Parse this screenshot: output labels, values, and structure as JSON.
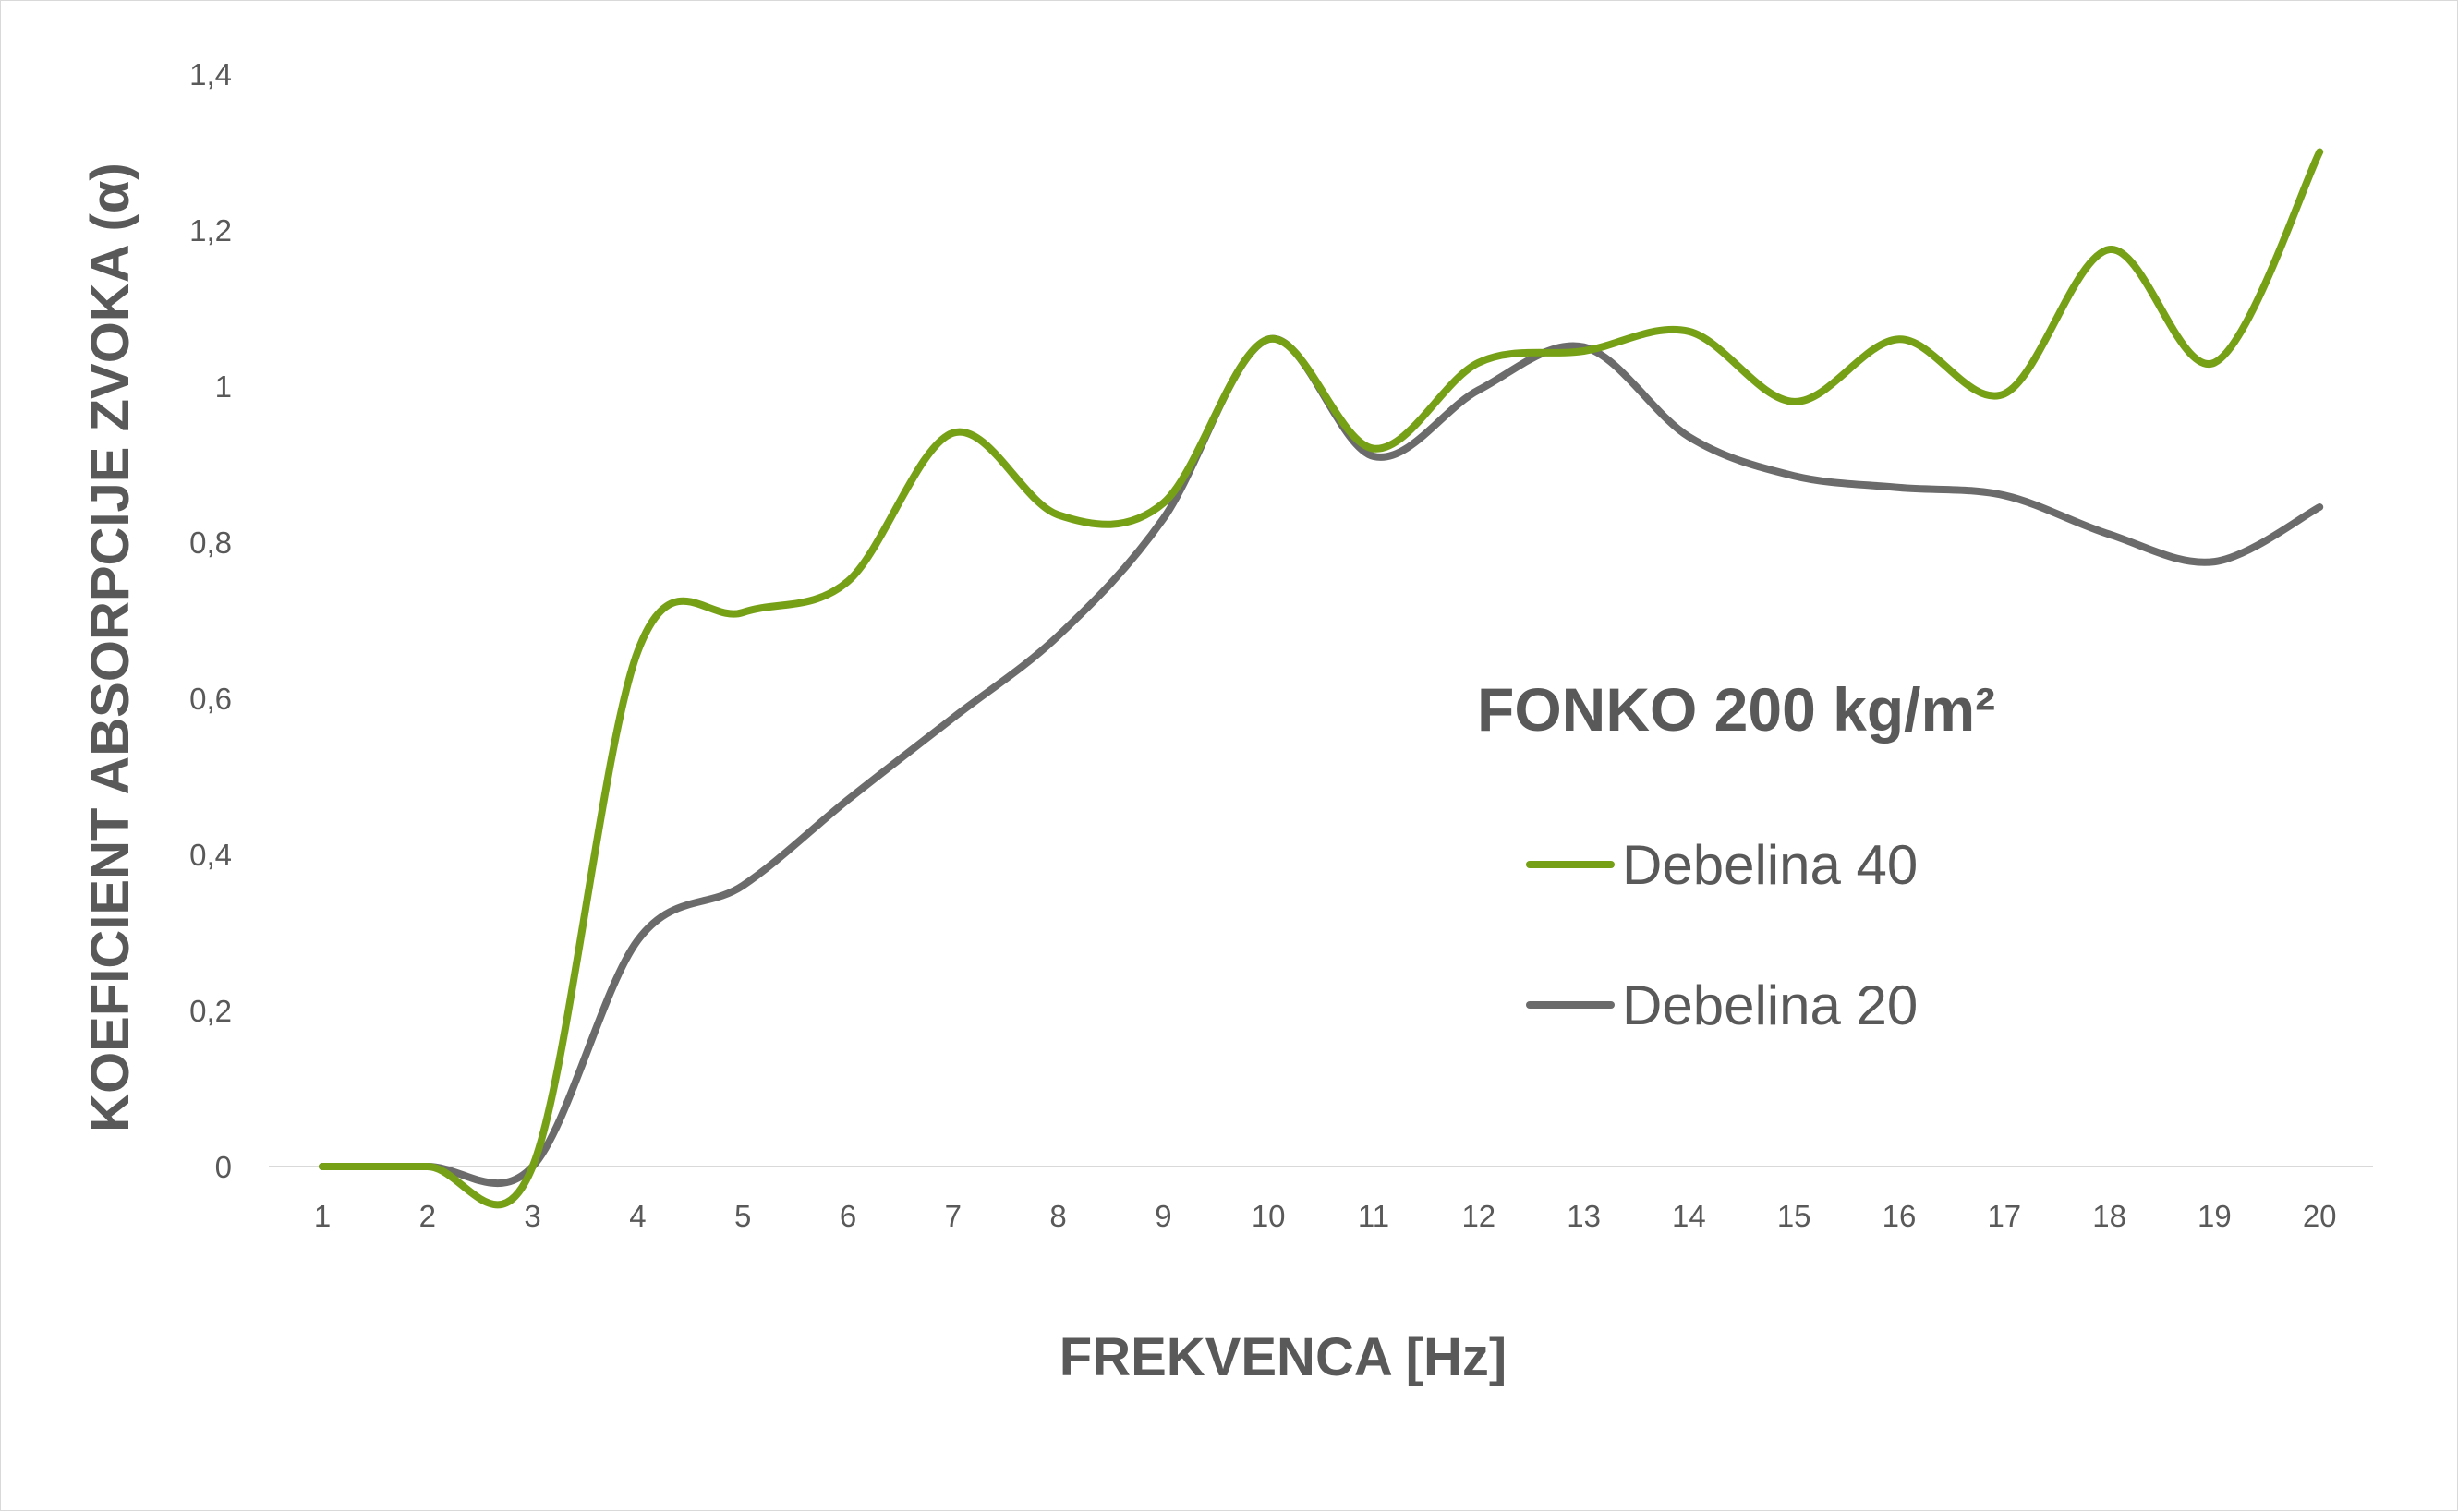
{
  "chart_data": {
    "type": "line",
    "title": "FONKO 200 kg/m²",
    "xlabel": "FREKVENCA [Hz]",
    "ylabel": "KOEFICIENT ABSORPCIJE ZVOKA (α)",
    "categories": [
      "1",
      "2",
      "3",
      "4",
      "5",
      "6",
      "7",
      "8",
      "9",
      "10",
      "11",
      "12",
      "13",
      "14",
      "15",
      "16",
      "17",
      "18",
      "19",
      "20"
    ],
    "ylim": [
      0,
      1.4
    ],
    "yticks": [
      0,
      0.2,
      0.4,
      0.6,
      0.8,
      1,
      1.2,
      1.4
    ],
    "ytick_labels": [
      "0",
      "0,2",
      "0,4",
      "0,6",
      "0,8",
      "1",
      "1,2",
      "1,4"
    ],
    "grid": false,
    "legend": "right",
    "smooth": true,
    "series": [
      {
        "name": "Debelina 40",
        "color": "#76a016",
        "values": [
          0,
          0,
          0,
          0.66,
          0.71,
          0.75,
          0.94,
          0.835,
          0.85,
          1.06,
          0.92,
          1.03,
          1.045,
          1.07,
          0.98,
          1.06,
          0.99,
          1.175,
          1.03,
          1.3
        ]
      },
      {
        "name": "Debelina 20",
        "color": "#6b6b6b",
        "values": [
          0,
          0,
          0,
          0.29,
          0.36,
          0.47,
          0.575,
          0.68,
          0.83,
          1.06,
          0.91,
          0.995,
          1.05,
          0.935,
          0.885,
          0.87,
          0.86,
          0.81,
          0.775,
          0.845
        ]
      }
    ]
  }
}
